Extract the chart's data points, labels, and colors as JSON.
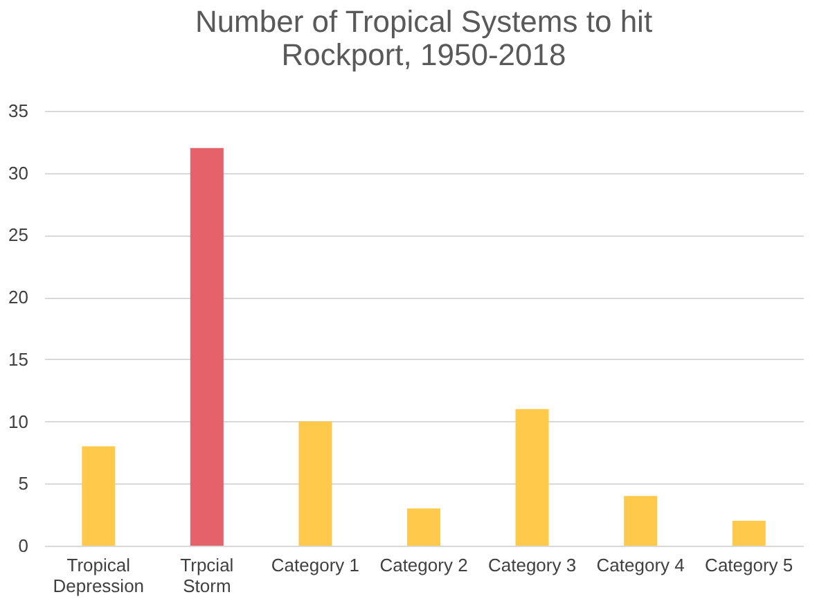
{
  "chart_data": {
    "type": "bar",
    "title": "Number of Tropical Systems to hit Rockport, 1950-2018",
    "categories": [
      "Tropical Depression",
      "Trpcial Storm",
      "Category 1",
      "Category 2",
      "Category 3",
      "Category 4",
      "Category 5"
    ],
    "values": [
      8,
      32,
      10,
      3,
      11,
      4,
      2
    ],
    "colors": [
      "#ffc94b",
      "#e5626b",
      "#ffc94b",
      "#ffc94b",
      "#ffc94b",
      "#ffc94b",
      "#ffc94b"
    ],
    "ylim": [
      0,
      35
    ],
    "yticks": [
      0,
      5,
      10,
      15,
      20,
      25,
      30,
      35
    ],
    "grid": "y"
  }
}
